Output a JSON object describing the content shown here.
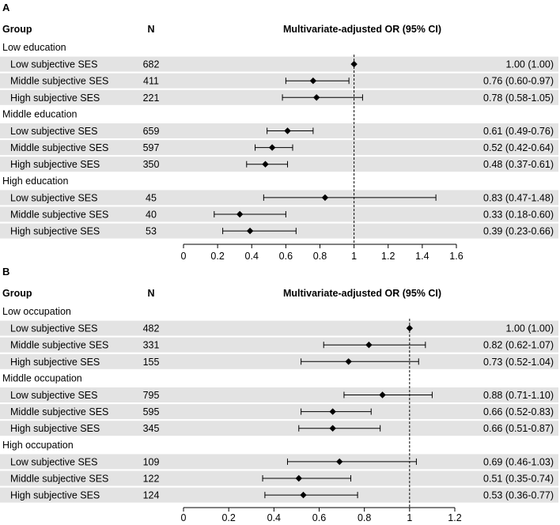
{
  "chart_data": [
    {
      "type": "forest",
      "panel_label": "A",
      "columns": {
        "group": "Group",
        "n": "N",
        "estimate": "Multivariate-adjusted OR (95% CI)"
      },
      "xlim": [
        0,
        1.6
      ],
      "ticks": [
        "0",
        "0.2",
        "0.4",
        "0.6",
        "0.8",
        "1",
        "1.2",
        "1.4",
        "1.6"
      ],
      "reference_line": 1,
      "sections": [
        {
          "title": "Low education",
          "rows": [
            {
              "label": "Low subjective SES",
              "n": "682",
              "or": 1.0,
              "lo": 1.0,
              "hi": 1.0,
              "text": "1.00 (1.00)"
            },
            {
              "label": "Middle subjective SES",
              "n": "411",
              "or": 0.76,
              "lo": 0.6,
              "hi": 0.97,
              "text": "0.76 (0.60-0.97)"
            },
            {
              "label": "High subjective SES",
              "n": "221",
              "or": 0.78,
              "lo": 0.58,
              "hi": 1.05,
              "text": "0.78 (0.58-1.05)"
            }
          ]
        },
        {
          "title": "Middle education",
          "rows": [
            {
              "label": "Low subjective SES",
              "n": "659",
              "or": 0.61,
              "lo": 0.49,
              "hi": 0.76,
              "text": "0.61 (0.49-0.76)"
            },
            {
              "label": "Middle subjective SES",
              "n": "597",
              "or": 0.52,
              "lo": 0.42,
              "hi": 0.64,
              "text": "0.52 (0.42-0.64)"
            },
            {
              "label": "High subjective SES",
              "n": "350",
              "or": 0.48,
              "lo": 0.37,
              "hi": 0.61,
              "text": "0.48 (0.37-0.61)"
            }
          ]
        },
        {
          "title": "High education",
          "rows": [
            {
              "label": "Low subjective SES",
              "n": "45",
              "or": 0.83,
              "lo": 0.47,
              "hi": 1.48,
              "text": "0.83 (0.47-1.48)"
            },
            {
              "label": "Middle subjective SES",
              "n": "40",
              "or": 0.33,
              "lo": 0.18,
              "hi": 0.6,
              "text": "0.33 (0.18-0.60)"
            },
            {
              "label": "High subjective SES",
              "n": "53",
              "or": 0.39,
              "lo": 0.23,
              "hi": 0.66,
              "text": "0.39 (0.23-0.66)"
            }
          ]
        }
      ]
    },
    {
      "type": "forest",
      "panel_label": "B",
      "columns": {
        "group": "Group",
        "n": "N",
        "estimate": "Multivariate-adjusted OR (95% CI)"
      },
      "xlim": [
        0,
        1.2
      ],
      "ticks": [
        "0",
        "0.2",
        "0.4",
        "0.6",
        "0.8",
        "1",
        "1.2"
      ],
      "reference_line": 1,
      "sections": [
        {
          "title": "Low occupation",
          "rows": [
            {
              "label": "Low subjective SES",
              "n": "482",
              "or": 1.0,
              "lo": 1.0,
              "hi": 1.0,
              "text": "1.00 (1.00)"
            },
            {
              "label": "Middle subjective SES",
              "n": "331",
              "or": 0.82,
              "lo": 0.62,
              "hi": 1.07,
              "text": "0.82 (0.62-1.07)"
            },
            {
              "label": "High subjective SES",
              "n": "155",
              "or": 0.73,
              "lo": 0.52,
              "hi": 1.04,
              "text": "0.73 (0.52-1.04)"
            }
          ]
        },
        {
          "title": "Middle occupation",
          "rows": [
            {
              "label": "Low subjective SES",
              "n": "795",
              "or": 0.88,
              "lo": 0.71,
              "hi": 1.1,
              "text": "0.88 (0.71-1.10)"
            },
            {
              "label": "Middle subjective SES",
              "n": "595",
              "or": 0.66,
              "lo": 0.52,
              "hi": 0.83,
              "text": "0.66 (0.52-0.83)"
            },
            {
              "label": "High subjective SES",
              "n": "345",
              "or": 0.66,
              "lo": 0.51,
              "hi": 0.87,
              "text": "0.66 (0.51-0.87)"
            }
          ]
        },
        {
          "title": "High occupation",
          "rows": [
            {
              "label": "Low subjective SES",
              "n": "109",
              "or": 0.69,
              "lo": 0.46,
              "hi": 1.03,
              "text": "0.69 (0.46-1.03)"
            },
            {
              "label": "Middle subjective SES",
              "n": "122",
              "or": 0.51,
              "lo": 0.35,
              "hi": 0.74,
              "text": "0.51 (0.35-0.74)"
            },
            {
              "label": "High subjective SES",
              "n": "124",
              "or": 0.53,
              "lo": 0.36,
              "hi": 0.77,
              "text": "0.53 (0.36-0.77)"
            }
          ]
        }
      ]
    }
  ],
  "colors": {
    "row_shade": "#e3e3e3",
    "ink": "#000000",
    "background": "#ffffff"
  }
}
